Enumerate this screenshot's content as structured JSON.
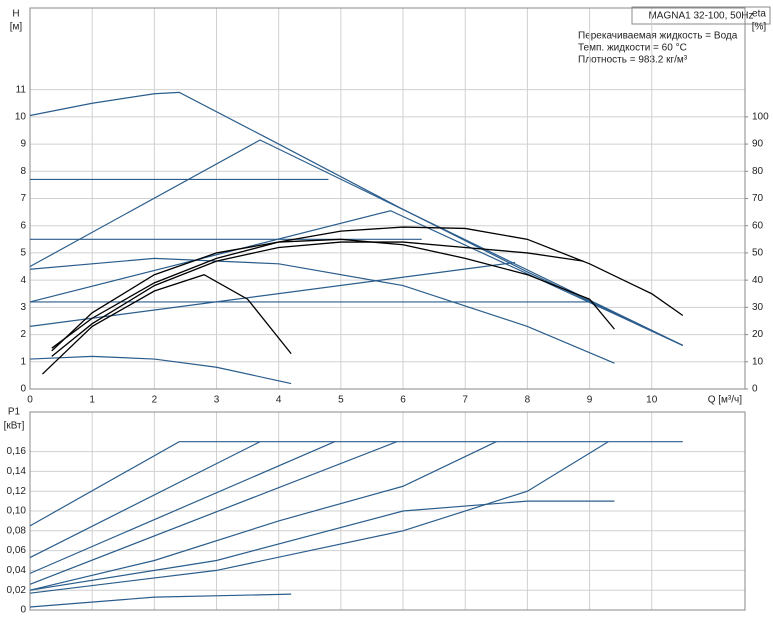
{
  "chart_data": [
    {
      "type": "line",
      "title": "MAGNA1 32-100, 50Hz",
      "annotations": [
        "Перекачиваемая жидкость = Вода",
        "Темп. жидкости = 60 °C",
        "Плотность = 983.2 кг/м³"
      ],
      "y_label": "H",
      "y_unit": "[м]",
      "y2_label": "eta",
      "y2_unit": "[%]",
      "x_label": "Q [м³/ч]",
      "xlim": [
        0,
        11.5
      ],
      "xticks": [
        0,
        1,
        2,
        3,
        4,
        5,
        6,
        7,
        8,
        9,
        10
      ],
      "ylim": [
        0,
        14
      ],
      "yticks": [
        0,
        1,
        2,
        3,
        4,
        5,
        6,
        7,
        8,
        9,
        10,
        11
      ],
      "y2lim": [
        0,
        140
      ],
      "y2ticks": [
        0,
        10,
        20,
        30,
        40,
        50,
        60,
        70,
        80,
        90,
        100
      ],
      "grid": true,
      "series": [
        {
          "color": "#2b5d8c",
          "x": [
            0,
            1,
            2,
            2.4,
            4,
            6,
            8,
            10.5
          ],
          "values": [
            10.05,
            10.5,
            10.85,
            10.9,
            9,
            6.6,
            4.3,
            1.6
          ]
        },
        {
          "color": "#2b5d8c",
          "x": [
            0,
            4.8
          ],
          "values": [
            7.7,
            7.7
          ]
        },
        {
          "color": "#2b5d8c",
          "x": [
            0,
            6.3
          ],
          "values": [
            5.5,
            5.5
          ]
        },
        {
          "color": "#2b5d8c",
          "x": [
            0,
            9
          ],
          "values": [
            3.2,
            3.2
          ]
        },
        {
          "color": "#2b5d8c",
          "x": [
            0,
            3.7,
            10.5
          ],
          "values": [
            4.5,
            9.15,
            1.6
          ]
        },
        {
          "color": "#2b5d8c",
          "x": [
            0,
            5.8,
            10.5
          ],
          "values": [
            3.2,
            6.55,
            1.6
          ]
        },
        {
          "color": "#2b5d8c",
          "x": [
            0,
            7.8
          ],
          "values": [
            2.3,
            4.65
          ]
        },
        {
          "color": "#2b5d8c",
          "x": [
            0,
            2,
            4,
            6,
            8,
            9.4
          ],
          "values": [
            4.4,
            4.8,
            4.6,
            3.8,
            2.3,
            0.95
          ]
        },
        {
          "color": "#2b5d8c",
          "x": [
            0,
            1,
            2,
            3,
            4.2
          ],
          "values": [
            1.1,
            1.2,
            1.1,
            0.8,
            0.2
          ]
        },
        {
          "color": "#000000",
          "axis": "y2",
          "x": [
            0.35,
            1,
            2,
            3,
            4,
            5,
            6,
            7,
            8,
            9,
            10,
            10.5
          ],
          "values": [
            15,
            26,
            39,
            48,
            54,
            58,
            59.5,
            59,
            55,
            46,
            35,
            27
          ]
        },
        {
          "color": "#000000",
          "axis": "y2",
          "x": [
            0.2,
            1,
            2,
            2.8,
            3.5,
            4.2
          ],
          "values": [
            5.5,
            23,
            36,
            42,
            33,
            13
          ]
        },
        {
          "color": "#000000",
          "axis": "y2",
          "x": [
            0.35,
            1,
            2,
            3,
            4,
            5,
            6,
            7,
            8,
            9,
            9.4
          ],
          "values": [
            14,
            28,
            42,
            50,
            54,
            55,
            53,
            48,
            42,
            33,
            22
          ]
        },
        {
          "color": "#000000",
          "axis": "y2",
          "x": [
            0.35,
            1,
            2,
            3,
            4,
            5,
            6,
            7,
            8,
            8.9
          ],
          "values": [
            12,
            24,
            38,
            47,
            52,
            54,
            54,
            52,
            50,
            47
          ]
        }
      ]
    },
    {
      "type": "line",
      "y_label": "P1",
      "y_unit": "[кВт]",
      "xlim": [
        0,
        11.5
      ],
      "xticks": [
        0,
        1,
        2,
        3,
        4,
        5,
        6,
        7,
        8,
        9,
        10
      ],
      "ylim": [
        0,
        0.2
      ],
      "yticks": [
        0,
        {
          "value": 0.02,
          "label": "0,02"
        },
        {
          "value": 0.04,
          "label": "0,04"
        },
        {
          "value": 0.06,
          "label": "0,06"
        },
        {
          "value": 0.08,
          "label": "0,08"
        },
        {
          "value": 0.1,
          "label": "0,10"
        },
        {
          "value": 0.12,
          "label": "0,12"
        },
        {
          "value": 0.14,
          "label": "0,14"
        },
        {
          "value": 0.16,
          "label": "0,16"
        }
      ],
      "grid": true,
      "series": [
        {
          "color": "#2b5d8c",
          "x": [
            0,
            2.4,
            10.5
          ],
          "values": [
            0.085,
            0.17,
            0.17
          ]
        },
        {
          "color": "#2b5d8c",
          "x": [
            0,
            3.7
          ],
          "values": [
            0.053,
            0.17
          ]
        },
        {
          "color": "#2b5d8c",
          "x": [
            0,
            4.9
          ],
          "values": [
            0.037,
            0.17
          ]
        },
        {
          "color": "#2b5d8c",
          "x": [
            0,
            5.9
          ],
          "values": [
            0.026,
            0.17
          ]
        },
        {
          "color": "#2b5d8c",
          "x": [
            0,
            2,
            4,
            6,
            7.5
          ],
          "values": [
            0.02,
            0.05,
            0.09,
            0.125,
            0.17
          ]
        },
        {
          "color": "#2b5d8c",
          "x": [
            0,
            3,
            6,
            8,
            9.3
          ],
          "values": [
            0.017,
            0.04,
            0.08,
            0.12,
            0.17
          ]
        },
        {
          "color": "#2b5d8c",
          "x": [
            0,
            3,
            6,
            8,
            9.4
          ],
          "values": [
            0.02,
            0.05,
            0.1,
            0.11,
            0.11
          ]
        },
        {
          "color": "#2b5d8c",
          "x": [
            0,
            2,
            4.2
          ],
          "values": [
            0.003,
            0.013,
            0.016
          ]
        }
      ]
    }
  ]
}
